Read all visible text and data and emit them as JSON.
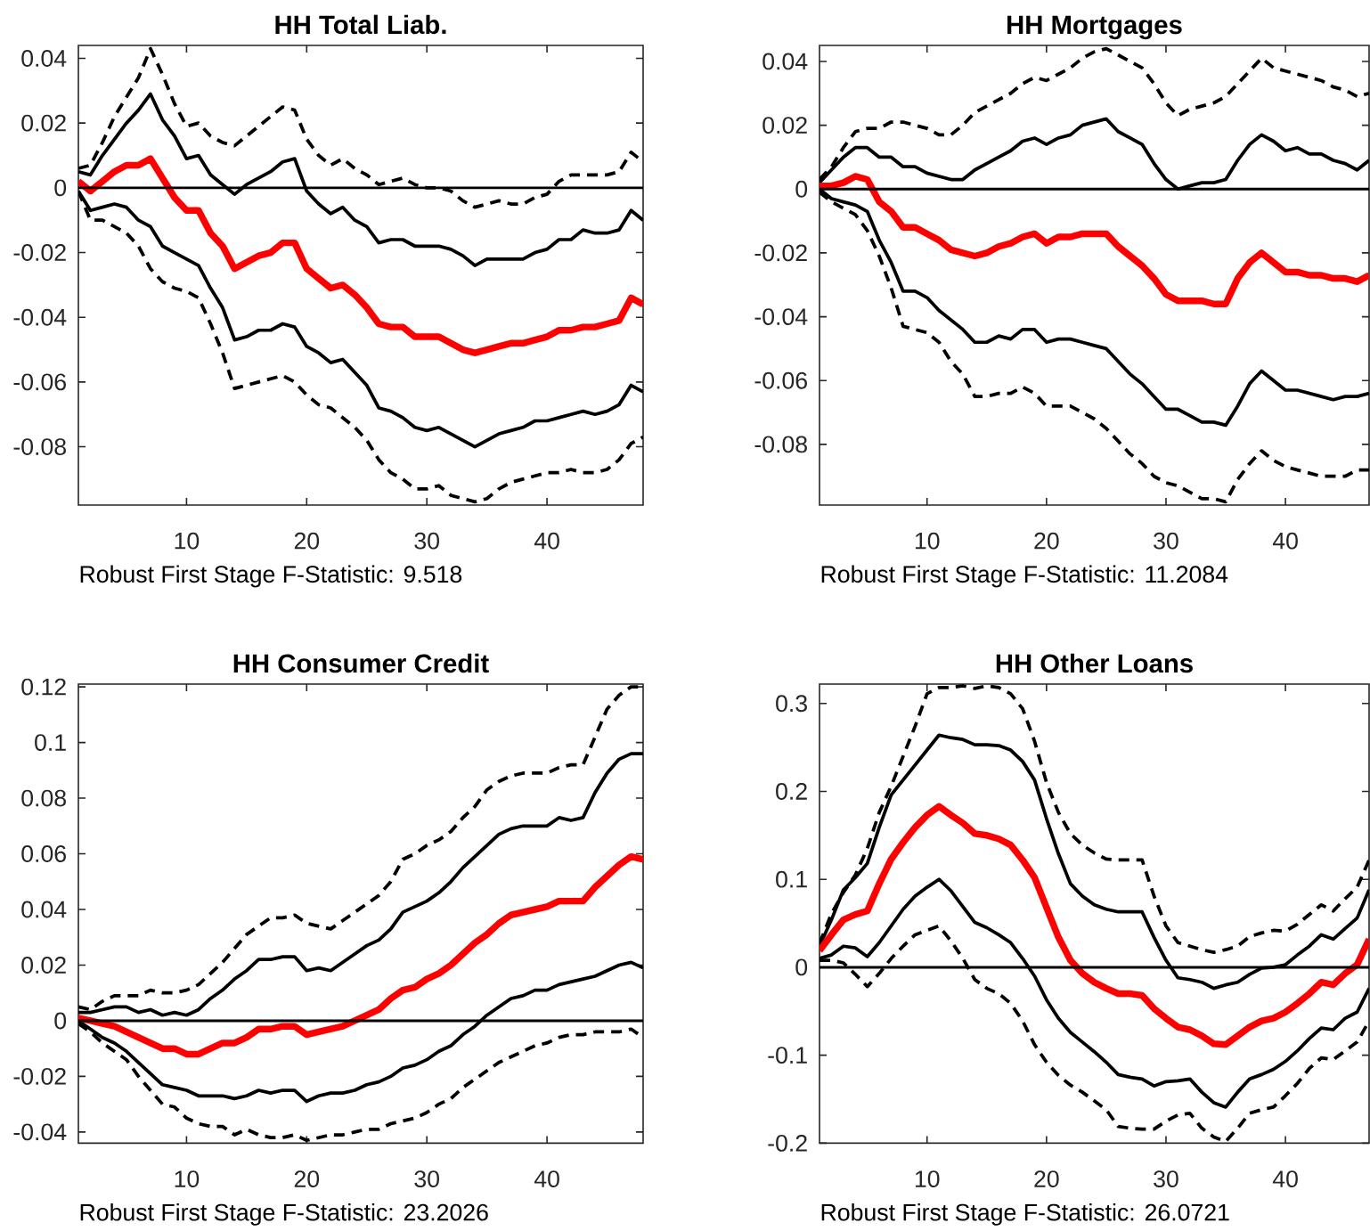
{
  "chart_data": [
    {
      "type": "line",
      "title": "HH Total Liab.",
      "annotations": [
        "Robust First Stage F-Statistic: 9.518"
      ],
      "x": [
        1,
        2,
        3,
        4,
        5,
        6,
        7,
        8,
        9,
        10,
        11,
        12,
        13,
        14,
        15,
        16,
        17,
        18,
        19,
        20,
        21,
        22,
        23,
        24,
        25,
        26,
        27,
        28,
        29,
        30,
        31,
        32,
        33,
        34,
        35,
        36,
        37,
        38,
        39,
        40,
        41,
        42,
        43,
        44,
        45,
        46,
        47,
        48
      ],
      "xlim": [
        1,
        48
      ],
      "ylim": [
        -0.098,
        0.044
      ],
      "xticks": [
        10,
        20,
        30,
        40
      ],
      "yticks": [
        -0.08,
        -0.06,
        -0.04,
        -0.02,
        0,
        0.02,
        0.04
      ],
      "ref_lines": [
        {
          "axis": "y",
          "value": 0,
          "color": "#000000"
        }
      ],
      "series": [
        {
          "color": "#000000",
          "line_style": "dashed",
          "values": [
            0.006,
            0.007,
            0.014,
            0.022,
            0.028,
            0.034,
            0.043,
            0.035,
            0.026,
            0.019,
            0.02,
            0.016,
            0.014,
            0.013,
            0.016,
            0.019,
            0.022,
            0.025,
            0.024,
            0.015,
            0.01,
            0.007,
            0.009,
            0.006,
            0.004,
            0.001,
            0.002,
            0.003,
            0.001,
            0.0,
            0.0,
            -0.001,
            -0.004,
            -0.006,
            -0.005,
            -0.004,
            -0.005,
            -0.005,
            -0.003,
            -0.002,
            0.002,
            0.004,
            0.004,
            0.004,
            0.004,
            0.005,
            0.011,
            0.008
          ]
        },
        {
          "color": "#000000",
          "line_style": "dashed",
          "values": [
            -0.001,
            -0.01,
            -0.01,
            -0.012,
            -0.014,
            -0.018,
            -0.025,
            -0.029,
            -0.031,
            -0.032,
            -0.034,
            -0.042,
            -0.051,
            -0.062,
            -0.061,
            -0.06,
            -0.059,
            -0.058,
            -0.06,
            -0.064,
            -0.067,
            -0.068,
            -0.071,
            -0.074,
            -0.078,
            -0.084,
            -0.088,
            -0.09,
            -0.093,
            -0.093,
            -0.092,
            -0.095,
            -0.096,
            -0.097,
            -0.096,
            -0.093,
            -0.091,
            -0.09,
            -0.089,
            -0.088,
            -0.088,
            -0.087,
            -0.088,
            -0.088,
            -0.087,
            -0.084,
            -0.079,
            -0.077
          ]
        },
        {
          "color": "#000000",
          "line_style": "solid",
          "values": [
            0.005,
            0.004,
            0.01,
            0.015,
            0.02,
            0.024,
            0.029,
            0.021,
            0.016,
            0.009,
            0.01,
            0.004,
            0.001,
            -0.002,
            0.001,
            0.003,
            0.005,
            0.008,
            0.009,
            -0.001,
            -0.005,
            -0.008,
            -0.006,
            -0.01,
            -0.012,
            -0.017,
            -0.016,
            -0.016,
            -0.018,
            -0.018,
            -0.018,
            -0.019,
            -0.021,
            -0.024,
            -0.022,
            -0.022,
            -0.022,
            -0.022,
            -0.02,
            -0.019,
            -0.016,
            -0.016,
            -0.013,
            -0.014,
            -0.014,
            -0.013,
            -0.007,
            -0.01
          ]
        },
        {
          "color": "#000000",
          "line_style": "solid",
          "values": [
            -0.001,
            -0.007,
            -0.006,
            -0.005,
            -0.006,
            -0.01,
            -0.012,
            -0.018,
            -0.02,
            -0.022,
            -0.024,
            -0.031,
            -0.037,
            -0.047,
            -0.046,
            -0.044,
            -0.044,
            -0.042,
            -0.043,
            -0.049,
            -0.051,
            -0.054,
            -0.053,
            -0.057,
            -0.061,
            -0.068,
            -0.069,
            -0.071,
            -0.074,
            -0.075,
            -0.074,
            -0.076,
            -0.078,
            -0.08,
            -0.078,
            -0.076,
            -0.075,
            -0.074,
            -0.072,
            -0.072,
            -0.071,
            -0.07,
            -0.069,
            -0.07,
            -0.069,
            -0.067,
            -0.061,
            -0.063
          ]
        },
        {
          "color": "#ff0000",
          "line_style": "solid",
          "values": [
            0.002,
            -0.001,
            0.002,
            0.005,
            0.007,
            0.007,
            0.009,
            0.003,
            -0.003,
            -0.007,
            -0.007,
            -0.014,
            -0.018,
            -0.025,
            -0.023,
            -0.021,
            -0.02,
            -0.017,
            -0.017,
            -0.025,
            -0.028,
            -0.031,
            -0.03,
            -0.033,
            -0.037,
            -0.042,
            -0.043,
            -0.043,
            -0.046,
            -0.046,
            -0.046,
            -0.048,
            -0.05,
            -0.051,
            -0.05,
            -0.049,
            -0.048,
            -0.048,
            -0.047,
            -0.046,
            -0.044,
            -0.044,
            -0.043,
            -0.043,
            -0.042,
            -0.041,
            -0.034,
            -0.036
          ]
        }
      ]
    },
    {
      "type": "line",
      "title": "HH Mortgages",
      "annotations": [
        "Robust First Stage F-Statistic: 11.2084"
      ],
      "x": [
        1,
        2,
        3,
        4,
        5,
        6,
        7,
        8,
        9,
        10,
        11,
        12,
        13,
        14,
        15,
        16,
        17,
        18,
        19,
        20,
        21,
        22,
        23,
        24,
        25,
        26,
        27,
        28,
        29,
        30,
        31,
        32,
        33,
        34,
        35,
        36,
        37,
        38,
        39,
        40,
        41,
        42,
        43,
        44,
        45,
        46,
        47
      ],
      "xlim": [
        1,
        47
      ],
      "ylim": [
        -0.099,
        0.045
      ],
      "xticks": [
        10,
        20,
        30,
        40
      ],
      "yticks": [
        -0.08,
        -0.06,
        -0.04,
        -0.02,
        0,
        0.02,
        0.04
      ],
      "ref_lines": [
        {
          "axis": "y",
          "value": 0,
          "color": "#000000"
        }
      ],
      "series": [
        {
          "color": "#000000",
          "line_style": "dashed",
          "values": [
            0.003,
            0.007,
            0.013,
            0.018,
            0.019,
            0.019,
            0.021,
            0.021,
            0.02,
            0.019,
            0.017,
            0.017,
            0.02,
            0.024,
            0.026,
            0.028,
            0.03,
            0.033,
            0.035,
            0.034,
            0.036,
            0.038,
            0.041,
            0.043,
            0.044,
            0.042,
            0.04,
            0.038,
            0.033,
            0.027,
            0.023,
            0.025,
            0.026,
            0.027,
            0.029,
            0.033,
            0.037,
            0.041,
            0.038,
            0.037,
            0.036,
            0.035,
            0.034,
            0.032,
            0.031,
            0.029,
            0.03
          ]
        },
        {
          "color": "#000000",
          "line_style": "dashed",
          "values": [
            -0.001,
            -0.004,
            -0.006,
            -0.008,
            -0.013,
            -0.021,
            -0.031,
            -0.043,
            -0.044,
            -0.045,
            -0.048,
            -0.054,
            -0.058,
            -0.065,
            -0.065,
            -0.064,
            -0.064,
            -0.062,
            -0.064,
            -0.068,
            -0.068,
            -0.068,
            -0.07,
            -0.072,
            -0.075,
            -0.079,
            -0.083,
            -0.086,
            -0.09,
            -0.092,
            -0.093,
            -0.095,
            -0.097,
            -0.097,
            -0.098,
            -0.091,
            -0.086,
            -0.082,
            -0.085,
            -0.087,
            -0.088,
            -0.089,
            -0.09,
            -0.09,
            -0.09,
            -0.088,
            -0.088
          ]
        },
        {
          "color": "#000000",
          "line_style": "solid",
          "values": [
            0.002,
            0.006,
            0.01,
            0.013,
            0.013,
            0.01,
            0.01,
            0.007,
            0.007,
            0.005,
            0.004,
            0.003,
            0.003,
            0.006,
            0.008,
            0.01,
            0.012,
            0.015,
            0.016,
            0.014,
            0.016,
            0.017,
            0.02,
            0.021,
            0.022,
            0.018,
            0.016,
            0.014,
            0.008,
            0.003,
            0.0,
            0.001,
            0.002,
            0.002,
            0.003,
            0.009,
            0.014,
            0.017,
            0.015,
            0.012,
            0.013,
            0.011,
            0.011,
            0.009,
            0.008,
            0.006,
            0.009
          ]
        },
        {
          "color": "#000000",
          "line_style": "solid",
          "values": [
            0.0,
            -0.003,
            -0.004,
            -0.005,
            -0.007,
            -0.016,
            -0.023,
            -0.032,
            -0.032,
            -0.034,
            -0.038,
            -0.041,
            -0.044,
            -0.048,
            -0.048,
            -0.046,
            -0.047,
            -0.044,
            -0.044,
            -0.048,
            -0.047,
            -0.047,
            -0.048,
            -0.049,
            -0.05,
            -0.054,
            -0.058,
            -0.061,
            -0.065,
            -0.069,
            -0.069,
            -0.071,
            -0.073,
            -0.073,
            -0.074,
            -0.068,
            -0.061,
            -0.057,
            -0.06,
            -0.063,
            -0.063,
            -0.064,
            -0.065,
            -0.066,
            -0.065,
            -0.065,
            -0.064
          ]
        },
        {
          "color": "#ff0000",
          "line_style": "solid",
          "values": [
            0.001,
            0.001,
            0.002,
            0.004,
            0.003,
            -0.004,
            -0.007,
            -0.012,
            -0.012,
            -0.014,
            -0.016,
            -0.019,
            -0.02,
            -0.021,
            -0.02,
            -0.018,
            -0.017,
            -0.015,
            -0.014,
            -0.017,
            -0.015,
            -0.015,
            -0.014,
            -0.014,
            -0.014,
            -0.018,
            -0.021,
            -0.024,
            -0.028,
            -0.033,
            -0.035,
            -0.035,
            -0.035,
            -0.036,
            -0.036,
            -0.028,
            -0.023,
            -0.02,
            -0.023,
            -0.026,
            -0.026,
            -0.027,
            -0.027,
            -0.028,
            -0.028,
            -0.029,
            -0.027
          ]
        }
      ]
    },
    {
      "type": "line",
      "title": "HH Consumer Credit",
      "annotations": [
        "Robust First Stage F-Statistic: 23.2026"
      ],
      "x": [
        1,
        2,
        3,
        4,
        5,
        6,
        7,
        8,
        9,
        10,
        11,
        12,
        13,
        14,
        15,
        16,
        17,
        18,
        19,
        20,
        21,
        22,
        23,
        24,
        25,
        26,
        27,
        28,
        29,
        30,
        31,
        32,
        33,
        34,
        35,
        36,
        37,
        38,
        39,
        40,
        41,
        42,
        43,
        44,
        45,
        46,
        47,
        48
      ],
      "xlim": [
        1,
        48
      ],
      "ylim": [
        -0.044,
        0.121
      ],
      "xticks": [
        10,
        20,
        30,
        40
      ],
      "yticks": [
        -0.04,
        -0.02,
        0,
        0.02,
        0.04,
        0.06,
        0.08,
        0.1,
        0.12
      ],
      "ref_lines": [
        {
          "axis": "y",
          "value": 0,
          "color": "#000000"
        }
      ],
      "series": [
        {
          "color": "#000000",
          "line_style": "dashed",
          "values": [
            0.005,
            0.004,
            0.007,
            0.009,
            0.009,
            0.009,
            0.011,
            0.01,
            0.01,
            0.011,
            0.013,
            0.017,
            0.021,
            0.026,
            0.031,
            0.034,
            0.037,
            0.037,
            0.038,
            0.035,
            0.034,
            0.033,
            0.036,
            0.039,
            0.042,
            0.045,
            0.05,
            0.058,
            0.06,
            0.063,
            0.065,
            0.068,
            0.073,
            0.077,
            0.083,
            0.086,
            0.088,
            0.089,
            0.089,
            0.089,
            0.091,
            0.092,
            0.092,
            0.102,
            0.112,
            0.117,
            0.12,
            0.12
          ]
        },
        {
          "color": "#000000",
          "line_style": "dashed",
          "values": [
            -0.001,
            -0.004,
            -0.008,
            -0.011,
            -0.014,
            -0.02,
            -0.025,
            -0.03,
            -0.031,
            -0.035,
            -0.037,
            -0.038,
            -0.038,
            -0.041,
            -0.039,
            -0.041,
            -0.042,
            -0.042,
            -0.041,
            -0.043,
            -0.042,
            -0.041,
            -0.041,
            -0.04,
            -0.039,
            -0.039,
            -0.037,
            -0.036,
            -0.035,
            -0.033,
            -0.03,
            -0.028,
            -0.024,
            -0.021,
            -0.018,
            -0.015,
            -0.013,
            -0.011,
            -0.009,
            -0.008,
            -0.006,
            -0.005,
            -0.005,
            -0.004,
            -0.004,
            -0.004,
            -0.003,
            -0.006
          ]
        },
        {
          "color": "#000000",
          "line_style": "solid",
          "values": [
            0.003,
            0.003,
            0.004,
            0.005,
            0.005,
            0.003,
            0.004,
            0.002,
            0.003,
            0.002,
            0.004,
            0.008,
            0.011,
            0.015,
            0.018,
            0.022,
            0.022,
            0.023,
            0.023,
            0.018,
            0.019,
            0.018,
            0.021,
            0.024,
            0.027,
            0.029,
            0.033,
            0.039,
            0.041,
            0.043,
            0.046,
            0.05,
            0.055,
            0.059,
            0.063,
            0.067,
            0.069,
            0.07,
            0.07,
            0.07,
            0.073,
            0.072,
            0.073,
            0.082,
            0.089,
            0.094,
            0.096,
            0.096
          ]
        },
        {
          "color": "#000000",
          "line_style": "solid",
          "values": [
            0.0,
            -0.003,
            -0.006,
            -0.008,
            -0.011,
            -0.015,
            -0.019,
            -0.023,
            -0.024,
            -0.025,
            -0.027,
            -0.027,
            -0.027,
            -0.028,
            -0.027,
            -0.025,
            -0.026,
            -0.025,
            -0.025,
            -0.029,
            -0.027,
            -0.026,
            -0.026,
            -0.025,
            -0.023,
            -0.022,
            -0.02,
            -0.017,
            -0.016,
            -0.014,
            -0.011,
            -0.009,
            -0.005,
            -0.002,
            0.002,
            0.005,
            0.008,
            0.009,
            0.011,
            0.011,
            0.013,
            0.014,
            0.015,
            0.016,
            0.018,
            0.02,
            0.021,
            0.019
          ]
        },
        {
          "color": "#ff0000",
          "line_style": "solid",
          "values": [
            0.001,
            0.0,
            -0.001,
            -0.002,
            -0.004,
            -0.006,
            -0.008,
            -0.01,
            -0.01,
            -0.012,
            -0.012,
            -0.01,
            -0.008,
            -0.008,
            -0.006,
            -0.003,
            -0.003,
            -0.002,
            -0.002,
            -0.005,
            -0.004,
            -0.003,
            -0.002,
            0.0,
            0.002,
            0.004,
            0.008,
            0.011,
            0.012,
            0.015,
            0.017,
            0.02,
            0.024,
            0.028,
            0.031,
            0.035,
            0.038,
            0.039,
            0.04,
            0.041,
            0.043,
            0.043,
            0.043,
            0.048,
            0.052,
            0.056,
            0.059,
            0.058
          ]
        }
      ]
    },
    {
      "type": "line",
      "title": "HH Other Loans",
      "annotations": [
        "Robust First Stage F-Statistic: 26.0721"
      ],
      "x": [
        1,
        2,
        3,
        4,
        5,
        6,
        7,
        8,
        9,
        10,
        11,
        12,
        13,
        14,
        15,
        16,
        17,
        18,
        19,
        20,
        21,
        22,
        23,
        24,
        25,
        26,
        27,
        28,
        29,
        30,
        31,
        32,
        33,
        34,
        35,
        36,
        37,
        38,
        39,
        40,
        41,
        42,
        43,
        44,
        45,
        46,
        47
      ],
      "xlim": [
        1,
        47
      ],
      "ylim": [
        -0.2,
        0.322
      ],
      "xticks": [
        10,
        20,
        30,
        40
      ],
      "yticks": [
        -0.2,
        -0.1,
        0,
        0.1,
        0.2,
        0.3
      ],
      "ref_lines": [
        {
          "axis": "y",
          "value": 0,
          "color": "#000000"
        }
      ],
      "series": [
        {
          "color": "#000000",
          "line_style": "dashed",
          "values": [
            0.027,
            0.061,
            0.085,
            0.105,
            0.135,
            0.176,
            0.206,
            0.24,
            0.274,
            0.311,
            0.318,
            0.318,
            0.32,
            0.317,
            0.32,
            0.318,
            0.311,
            0.294,
            0.257,
            0.21,
            0.176,
            0.152,
            0.139,
            0.13,
            0.123,
            0.122,
            0.122,
            0.122,
            0.081,
            0.047,
            0.028,
            0.024,
            0.02,
            0.017,
            0.02,
            0.024,
            0.035,
            0.039,
            0.042,
            0.041,
            0.049,
            0.06,
            0.071,
            0.064,
            0.078,
            0.091,
            0.122
          ]
        },
        {
          "color": "#000000",
          "line_style": "dashed",
          "values": [
            0.008,
            0.008,
            0.005,
            -0.008,
            -0.022,
            -0.007,
            0.01,
            0.024,
            0.037,
            0.042,
            0.047,
            0.03,
            0.01,
            -0.014,
            -0.024,
            -0.03,
            -0.041,
            -0.061,
            -0.088,
            -0.108,
            -0.123,
            -0.134,
            -0.142,
            -0.152,
            -0.162,
            -0.181,
            -0.183,
            -0.184,
            -0.184,
            -0.175,
            -0.168,
            -0.166,
            -0.183,
            -0.193,
            -0.198,
            -0.183,
            -0.166,
            -0.162,
            -0.159,
            -0.146,
            -0.132,
            -0.115,
            -0.103,
            -0.105,
            -0.095,
            -0.085,
            -0.061
          ]
        },
        {
          "color": "#000000",
          "line_style": "solid",
          "values": [
            0.024,
            0.054,
            0.088,
            0.102,
            0.118,
            0.159,
            0.196,
            0.213,
            0.23,
            0.247,
            0.264,
            0.261,
            0.259,
            0.253,
            0.253,
            0.252,
            0.247,
            0.234,
            0.213,
            0.169,
            0.129,
            0.095,
            0.081,
            0.071,
            0.066,
            0.063,
            0.063,
            0.063,
            0.034,
            0.008,
            -0.012,
            -0.014,
            -0.017,
            -0.024,
            -0.02,
            -0.017,
            -0.008,
            -0.001,
            0.0,
            0.003,
            0.014,
            0.024,
            0.037,
            0.032,
            0.044,
            0.056,
            0.088
          ]
        },
        {
          "color": "#000000",
          "line_style": "solid",
          "values": [
            0.01,
            0.014,
            0.024,
            0.022,
            0.012,
            0.028,
            0.047,
            0.066,
            0.081,
            0.091,
            0.1,
            0.087,
            0.069,
            0.051,
            0.045,
            0.037,
            0.028,
            0.01,
            -0.01,
            -0.037,
            -0.058,
            -0.074,
            -0.085,
            -0.096,
            -0.108,
            -0.122,
            -0.125,
            -0.127,
            -0.135,
            -0.13,
            -0.129,
            -0.127,
            -0.142,
            -0.154,
            -0.159,
            -0.142,
            -0.127,
            -0.122,
            -0.116,
            -0.107,
            -0.095,
            -0.081,
            -0.069,
            -0.071,
            -0.058,
            -0.051,
            -0.024
          ]
        },
        {
          "color": "#ff0000",
          "line_style": "solid",
          "values": [
            0.019,
            0.037,
            0.054,
            0.06,
            0.064,
            0.095,
            0.123,
            0.142,
            0.159,
            0.173,
            0.183,
            0.173,
            0.164,
            0.152,
            0.15,
            0.146,
            0.139,
            0.122,
            0.102,
            0.068,
            0.034,
            0.008,
            -0.007,
            -0.017,
            -0.024,
            -0.03,
            -0.03,
            -0.032,
            -0.047,
            -0.058,
            -0.068,
            -0.071,
            -0.078,
            -0.087,
            -0.088,
            -0.078,
            -0.068,
            -0.061,
            -0.058,
            -0.051,
            -0.041,
            -0.03,
            -0.017,
            -0.02,
            -0.007,
            0.003,
            0.032
          ]
        }
      ]
    }
  ]
}
